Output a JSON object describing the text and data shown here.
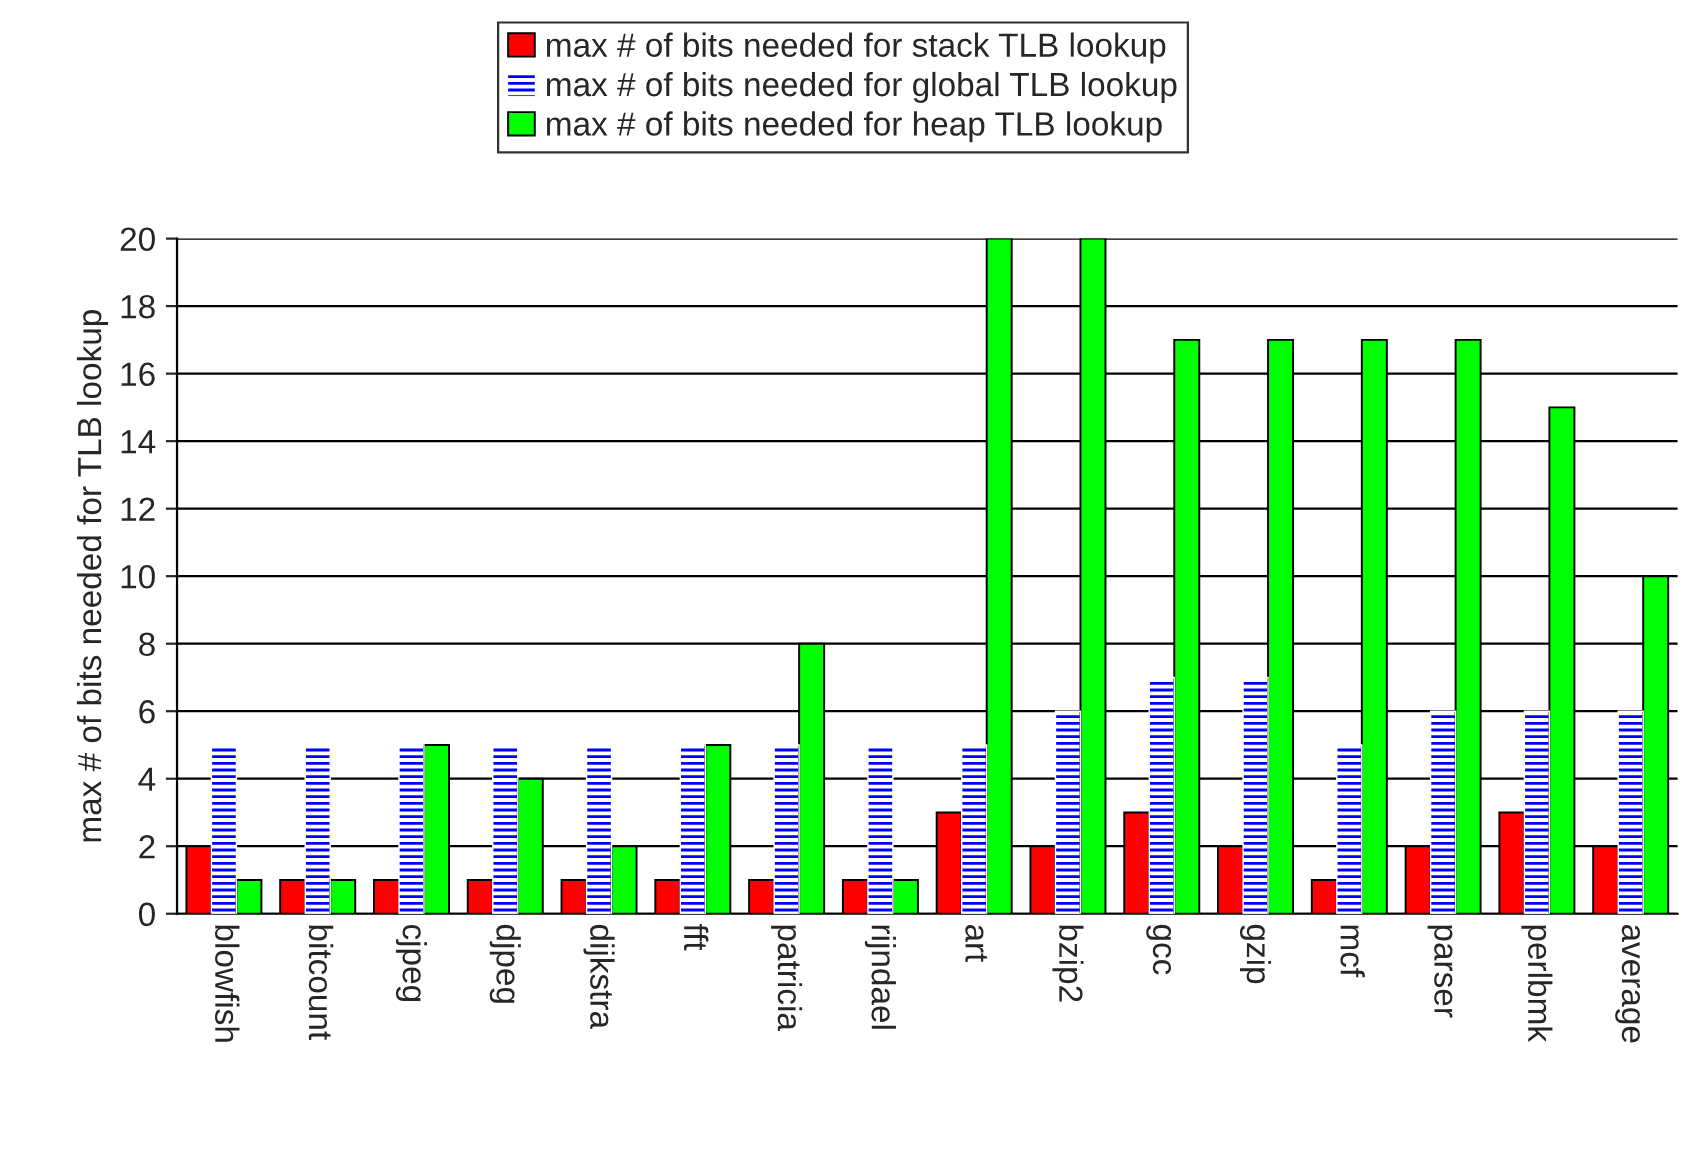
{
  "chart_data": {
    "type": "bar",
    "ylabel": "max # of bits needed for TLB lookup",
    "categories": [
      "blowfish",
      "bitcount",
      "cjpeg",
      "djpeg",
      "dijkstra",
      "fft",
      "patricia",
      "rijndael",
      "art",
      "bzip2",
      "gcc",
      "gzip",
      "mcf",
      "parser",
      "perlbmk",
      "average"
    ],
    "series": [
      {
        "name": "max # of bits needed for stack TLB lookup",
        "color": "#ff0000",
        "values": [
          2,
          1,
          1,
          1,
          1,
          1,
          1,
          1,
          3,
          2,
          3,
          2,
          1,
          2,
          3,
          2
        ]
      },
      {
        "name": "max # of bits needed for global TLB lookup",
        "color": "#0000ff",
        "values": [
          5,
          5,
          5,
          5,
          5,
          5,
          5,
          5,
          5,
          6,
          7,
          7,
          5,
          6,
          6,
          6
        ]
      },
      {
        "name": "max # of bits needed for heap TLB lookup",
        "color": "#00ff00",
        "values": [
          1,
          1,
          5,
          4,
          2,
          5,
          8,
          1,
          20,
          20,
          17,
          17,
          17,
          17,
          15,
          10
        ]
      }
    ],
    "ylim": [
      0,
      20
    ],
    "yticks": [
      0,
      2,
      4,
      6,
      8,
      10,
      12,
      14,
      16,
      18,
      20
    ],
    "grid": "y",
    "legend": "top"
  }
}
